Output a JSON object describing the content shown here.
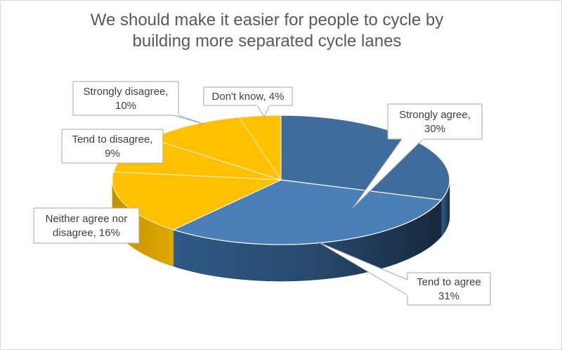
{
  "chart_data": {
    "type": "pie",
    "title_lines": [
      "We should make it easier for people to cycle by",
      "building more separated cycle lanes"
    ],
    "slices": [
      {
        "label_lines": [
          "Strongly agree,",
          "30%"
        ],
        "category": "Strongly agree",
        "value": 30,
        "color": "#3E6D9C"
      },
      {
        "label_lines": [
          "Tend to agree",
          "31%"
        ],
        "category": "Tend to agree",
        "value": 31,
        "color": "#4A80B6"
      },
      {
        "label_lines": [
          "Neither agree nor",
          "disagree, 16%"
        ],
        "category": "Neither agree nor disagree",
        "value": 16,
        "color": "#FFC000"
      },
      {
        "label_lines": [
          "Tend to disagree,",
          "9%"
        ],
        "category": "Tend to disagree",
        "value": 9,
        "color": "#FFC000"
      },
      {
        "label_lines": [
          "Strongly disagree,",
          "10%"
        ],
        "category": "Strongly disagree",
        "value": 10,
        "color": "#FFC000"
      },
      {
        "label_lines": [
          "Don't know, 4%"
        ],
        "category": "Don't know",
        "value": 4,
        "color": "#FFC000"
      }
    ],
    "style": "3d-pie",
    "legend": "none"
  }
}
